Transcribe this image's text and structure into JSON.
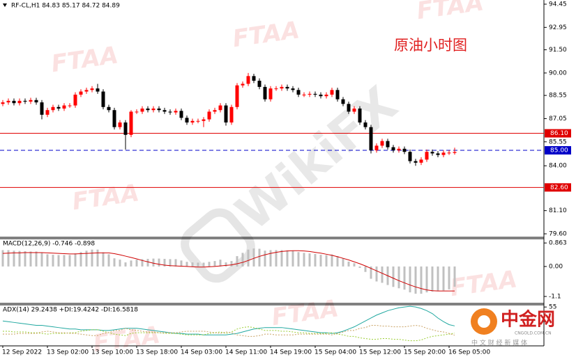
{
  "chart_data": [
    {
      "type": "candlestick",
      "header": "RF-CL,H1  84.83 85.17 84.72 84.89",
      "annotation": "原油小时图",
      "up_color": "#ff0000",
      "down_color": "#000000",
      "categories": [
        "12 Sep 2022",
        null,
        null,
        null,
        null,
        null,
        null,
        null,
        "13 Sep 02:00",
        null,
        null,
        null,
        null,
        null,
        null,
        null,
        "13 Sep 10:00",
        null,
        null,
        null,
        null,
        null,
        null,
        null,
        "13 Sep 18:00",
        null,
        null,
        null,
        null,
        null,
        null,
        null,
        "14 Sep 03:00",
        null,
        null,
        null,
        null,
        null,
        null,
        null,
        "14 Sep 11:00",
        null,
        null,
        null,
        null,
        null,
        null,
        null,
        "14 Sep 19:00",
        null,
        null,
        null,
        null,
        null,
        null,
        null,
        "15 Sep 04:00",
        null,
        null,
        null,
        null,
        null,
        null,
        null,
        "15 Sep 12:00",
        null,
        null,
        null,
        null,
        null,
        null,
        null,
        "15 Sep 20:00",
        null,
        null,
        null,
        null,
        null,
        null,
        null,
        "16 Sep 05:00",
        null
      ],
      "open": [
        88.0,
        88.1,
        88.2,
        88.05,
        88.2,
        88.15,
        88.25,
        88.1,
        87.3,
        87.6,
        87.8,
        87.7,
        87.9,
        87.9,
        88.6,
        88.8,
        88.9,
        89.0,
        88.8,
        87.8,
        87.6,
        86.5,
        86.8,
        86.0,
        87.5,
        87.5,
        87.7,
        87.6,
        87.7,
        87.6,
        87.5,
        87.45,
        87.55,
        87.1,
        86.8,
        86.9,
        86.9,
        87.0,
        87.5,
        87.6,
        87.9,
        86.8,
        87.8,
        89.2,
        89.3,
        89.8,
        89.5,
        89.1,
        88.3,
        89.0,
        89.0,
        89.1,
        89.0,
        88.9,
        88.6,
        88.6,
        88.65,
        88.6,
        88.5,
        88.6,
        88.9,
        88.3,
        88.0,
        87.5,
        87.7,
        86.8,
        86.5,
        85.0,
        85.3,
        85.6,
        85.2,
        85.0,
        85.1,
        84.9,
        84.3,
        84.2,
        84.4,
        84.9,
        84.8,
        84.7,
        84.85,
        84.83
      ],
      "high": [
        88.25,
        88.35,
        88.35,
        88.35,
        88.35,
        88.4,
        88.4,
        88.25,
        87.75,
        87.95,
        87.95,
        88.05,
        88.05,
        88.75,
        88.95,
        89.05,
        89.15,
        89.3,
        88.95,
        87.95,
        87.75,
        86.95,
        86.95,
        87.6,
        87.65,
        87.85,
        87.85,
        87.85,
        87.85,
        87.75,
        87.65,
        87.7,
        87.7,
        87.25,
        87.05,
        87.05,
        87.15,
        87.65,
        87.75,
        88.05,
        88.05,
        87.95,
        89.35,
        89.45,
        90.0,
        89.95,
        89.65,
        89.25,
        89.15,
        89.15,
        89.25,
        89.25,
        89.15,
        89.05,
        88.75,
        88.8,
        88.8,
        88.75,
        88.75,
        89.05,
        89.05,
        88.45,
        88.15,
        87.85,
        87.85,
        86.95,
        86.65,
        85.45,
        85.75,
        85.75,
        85.35,
        85.25,
        85.25,
        85.05,
        84.45,
        84.55,
        85.05,
        85.05,
        84.95,
        85.0,
        85.0,
        85.17
      ],
      "low": [
        87.85,
        87.95,
        87.9,
        87.9,
        88.0,
        88.0,
        87.95,
        87.0,
        87.15,
        87.45,
        87.55,
        87.55,
        87.75,
        87.75,
        88.45,
        88.65,
        88.75,
        88.65,
        87.65,
        87.45,
        86.35,
        86.35,
        85.05,
        85.85,
        87.35,
        87.35,
        87.45,
        87.45,
        87.45,
        87.35,
        87.3,
        87.3,
        86.95,
        86.65,
        86.65,
        86.75,
        86.5,
        86.85,
        87.35,
        87.45,
        86.6,
        86.65,
        87.65,
        89.05,
        89.15,
        89.35,
        88.95,
        88.15,
        88.15,
        88.85,
        88.85,
        88.85,
        88.75,
        88.45,
        88.45,
        88.45,
        88.45,
        88.35,
        88.35,
        88.45,
        88.15,
        87.85,
        87.35,
        87.35,
        86.65,
        86.35,
        84.8,
        84.85,
        85.15,
        85.05,
        84.85,
        84.85,
        84.75,
        84.15,
        84.0,
        84.05,
        84.25,
        84.65,
        84.55,
        84.55,
        84.7,
        84.72
      ],
      "close": [
        88.1,
        88.2,
        88.05,
        88.2,
        88.15,
        88.25,
        88.1,
        87.3,
        87.6,
        87.8,
        87.7,
        87.9,
        87.9,
        88.6,
        88.8,
        88.9,
        89.0,
        88.8,
        87.8,
        87.6,
        86.5,
        86.8,
        86.0,
        87.5,
        87.5,
        87.7,
        87.6,
        87.7,
        87.6,
        87.5,
        87.45,
        87.55,
        87.1,
        86.8,
        86.9,
        86.9,
        87.0,
        87.5,
        87.6,
        87.9,
        86.8,
        87.8,
        89.2,
        89.3,
        89.8,
        89.5,
        89.1,
        88.3,
        89.0,
        89.0,
        89.1,
        89.0,
        88.9,
        88.6,
        88.6,
        88.65,
        88.6,
        88.5,
        88.6,
        88.9,
        88.3,
        88.0,
        87.5,
        87.7,
        86.8,
        86.5,
        85.0,
        85.3,
        85.6,
        85.2,
        85.0,
        85.1,
        84.9,
        84.3,
        84.2,
        84.4,
        84.9,
        84.8,
        84.7,
        84.85,
        84.85,
        84.89
      ],
      "ylim": [
        79.42,
        94.72
      ],
      "yticks": [
        94.45,
        92.95,
        {
          "value": 91.5,
          "label": "91.50"
        },
        {
          "value": 90,
          "label": "90.00"
        },
        88.55,
        87.05,
        85.55,
        {
          "value": 84,
          "label": "84.00"
        },
        {
          "value": 81.1,
          "label": "81.10"
        },
        {
          "value": 79.6,
          "label": "79.60"
        }
      ],
      "levels": [
        {
          "value": 86.1,
          "label": "86.10",
          "color": "#e00000",
          "dashed": false
        },
        {
          "value": 85,
          "label": "85.00",
          "color": "#0000c8",
          "dashed": true
        },
        {
          "value": 82.6,
          "label": "82.60",
          "color": "#e00000",
          "dashed": false
        }
      ]
    },
    {
      "type": "macd",
      "header": "MACD(12,26,9) -0.746 -0.898",
      "histogram": {
        "color": "#c0c0c0",
        "values": [
          0.6,
          0.6,
          0.58,
          0.57,
          0.56,
          0.55,
          0.55,
          0.5,
          0.45,
          0.43,
          0.42,
          0.42,
          0.42,
          0.48,
          0.53,
          0.58,
          0.62,
          0.62,
          0.52,
          0.45,
          0.3,
          0.25,
          0.15,
          0.22,
          0.25,
          0.27,
          0.28,
          0.29,
          0.29,
          0.28,
          0.27,
          0.27,
          0.22,
          0.17,
          0.15,
          0.14,
          0.14,
          0.17,
          0.2,
          0.25,
          0.15,
          0.2,
          0.38,
          0.5,
          0.62,
          0.66,
          0.65,
          0.58,
          0.6,
          0.6,
          0.6,
          0.59,
          0.57,
          0.53,
          0.5,
          0.48,
          0.46,
          0.43,
          0.42,
          0.44,
          0.38,
          0.3,
          0.18,
          0.12,
          -0.05,
          -0.2,
          -0.45,
          -0.55,
          -0.6,
          -0.68,
          -0.75,
          -0.8,
          -0.85,
          -0.95,
          -1.0,
          -1.0,
          -0.95,
          -0.92,
          -0.9,
          -0.88,
          -0.84,
          -0.746
        ]
      },
      "signal": {
        "color": "#d00000",
        "values": [
          0.48,
          0.49,
          0.5,
          0.5,
          0.51,
          0.51,
          0.51,
          0.51,
          0.5,
          0.49,
          0.48,
          0.47,
          0.46,
          0.46,
          0.47,
          0.48,
          0.49,
          0.5,
          0.5,
          0.5,
          0.47,
          0.43,
          0.38,
          0.33,
          0.28,
          0.22,
          0.17,
          0.12,
          0.08,
          0.05,
          0.03,
          0.02,
          0.01,
          0.0,
          -0.01,
          -0.02,
          -0.02,
          -0.01,
          0.0,
          0.02,
          0.04,
          0.06,
          0.1,
          0.15,
          0.22,
          0.3,
          0.37,
          0.43,
          0.48,
          0.52,
          0.55,
          0.57,
          0.58,
          0.58,
          0.57,
          0.55,
          0.52,
          0.49,
          0.45,
          0.41,
          0.36,
          0.3,
          0.24,
          0.17,
          0.1,
          0.02,
          -0.07,
          -0.16,
          -0.25,
          -0.34,
          -0.43,
          -0.52,
          -0.6,
          -0.68,
          -0.75,
          -0.81,
          -0.86,
          -0.89,
          -0.9,
          -0.9,
          -0.9,
          -0.898
        ]
      },
      "ylim": [
        -1.33,
        1.02
      ],
      "yticks": [
        0.863,
        {
          "value": 0,
          "label": "0.00"
        },
        -1.1
      ]
    },
    {
      "type": "line",
      "header": "ADX(14) 29.2438 +DI:19.4242 -DI:16.5818",
      "series": [
        {
          "color": "#20a8a0",
          "dashed": false,
          "values": [
            36,
            35,
            34,
            33,
            32,
            31,
            30,
            30,
            29,
            28,
            27,
            26,
            25,
            25,
            24,
            24,
            24,
            24,
            23,
            23,
            24,
            25,
            26,
            26,
            26,
            25,
            24,
            23,
            22,
            21,
            20,
            19,
            19,
            18,
            18,
            18,
            17,
            17,
            17,
            17,
            17,
            18,
            19,
            21,
            23,
            25,
            26,
            27,
            27,
            27,
            27,
            26,
            25,
            24,
            23,
            22,
            21,
            20,
            20,
            19,
            20,
            22,
            25,
            28,
            32,
            36,
            40,
            44,
            47,
            50,
            52,
            54,
            55,
            56,
            55,
            53,
            50,
            46,
            40,
            35,
            31,
            29.2438
          ]
        },
        {
          "color": "#9acd32",
          "dashed": true,
          "values": [
            22,
            22,
            21,
            21,
            21,
            20,
            20,
            19,
            18,
            19,
            19,
            19,
            20,
            20,
            22,
            23,
            24,
            24,
            22,
            20,
            18,
            17,
            16,
            19,
            20,
            20,
            20,
            20,
            20,
            19,
            19,
            19,
            18,
            17,
            17,
            17,
            17,
            19,
            20,
            21,
            19,
            21,
            25,
            27,
            28,
            27,
            25,
            23,
            23,
            23,
            22,
            22,
            21,
            20,
            20,
            19,
            19,
            19,
            19,
            20,
            18,
            17,
            15,
            15,
            13,
            12,
            11,
            11,
            12,
            12,
            11,
            11,
            10,
            9,
            9,
            10,
            13,
            15,
            16,
            17,
            18,
            19.4242
          ]
        },
        {
          "color": "#c8a060",
          "dashed": true,
          "values": [
            18,
            18,
            18,
            19,
            19,
            19,
            19,
            21,
            22,
            21,
            20,
            20,
            19,
            19,
            18,
            17,
            16,
            16,
            19,
            20,
            23,
            23,
            26,
            24,
            23,
            22,
            21,
            21,
            20,
            20,
            20,
            20,
            21,
            22,
            22,
            22,
            22,
            21,
            20,
            19,
            21,
            20,
            17,
            16,
            15,
            15,
            16,
            18,
            18,
            17,
            17,
            17,
            17,
            18,
            18,
            18,
            18,
            18,
            18,
            17,
            19,
            21,
            23,
            23,
            26,
            27,
            30,
            30,
            29,
            29,
            28,
            28,
            28,
            29,
            30,
            29,
            26,
            24,
            22,
            21,
            19,
            16.5818
          ]
        }
      ],
      "ylim": [
        3,
        58
      ],
      "yticks": [
        55
      ]
    }
  ],
  "watermarks": {
    "ftaa": "FTAA",
    "wikifx": "WikiFX",
    "logo": "中金网",
    "logo_site": "CNGOLD.COM.CN",
    "logo_sub": "中 文 财 经 新 媒 体"
  }
}
